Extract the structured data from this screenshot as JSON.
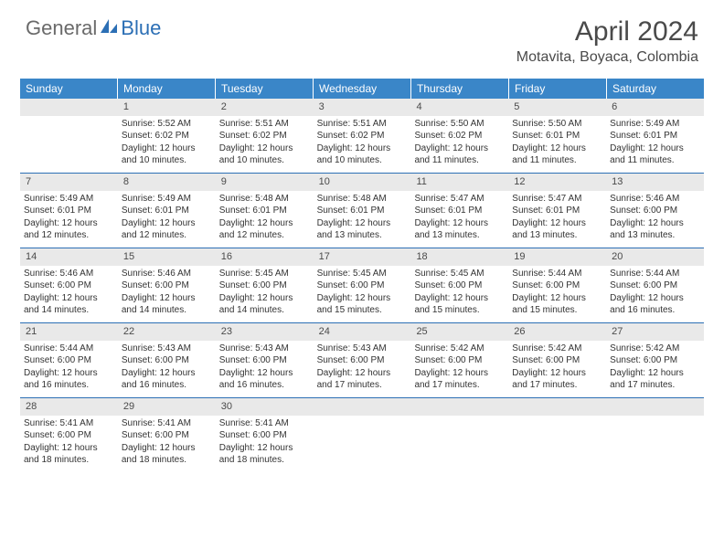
{
  "brand": {
    "general": "General",
    "blue": "Blue"
  },
  "title": "April 2024",
  "location": "Motavita, Boyaca, Colombia",
  "colors": {
    "header_bar": "#3a86c8",
    "header_text": "#ffffff",
    "daynum_bg": "#e9e9e9",
    "week_divider": "#2c6fb5",
    "body_text": "#333333",
    "title_text": "#4a4a4a",
    "logo_gray": "#6a6a6a",
    "logo_blue": "#2c6fb5",
    "page_bg": "#ffffff"
  },
  "typography": {
    "title_fontsize": 30,
    "subtitle_fontsize": 16,
    "dow_fontsize": 12,
    "daynum_fontsize": 11,
    "cell_fontsize": 10
  },
  "days_of_week": [
    "Sunday",
    "Monday",
    "Tuesday",
    "Wednesday",
    "Thursday",
    "Friday",
    "Saturday"
  ],
  "weeks": [
    [
      null,
      {
        "num": "1",
        "sunrise": "Sunrise: 5:52 AM",
        "sunset": "Sunset: 6:02 PM",
        "daylight": "Daylight: 12 hours and 10 minutes."
      },
      {
        "num": "2",
        "sunrise": "Sunrise: 5:51 AM",
        "sunset": "Sunset: 6:02 PM",
        "daylight": "Daylight: 12 hours and 10 minutes."
      },
      {
        "num": "3",
        "sunrise": "Sunrise: 5:51 AM",
        "sunset": "Sunset: 6:02 PM",
        "daylight": "Daylight: 12 hours and 10 minutes."
      },
      {
        "num": "4",
        "sunrise": "Sunrise: 5:50 AM",
        "sunset": "Sunset: 6:02 PM",
        "daylight": "Daylight: 12 hours and 11 minutes."
      },
      {
        "num": "5",
        "sunrise": "Sunrise: 5:50 AM",
        "sunset": "Sunset: 6:01 PM",
        "daylight": "Daylight: 12 hours and 11 minutes."
      },
      {
        "num": "6",
        "sunrise": "Sunrise: 5:49 AM",
        "sunset": "Sunset: 6:01 PM",
        "daylight": "Daylight: 12 hours and 11 minutes."
      }
    ],
    [
      {
        "num": "7",
        "sunrise": "Sunrise: 5:49 AM",
        "sunset": "Sunset: 6:01 PM",
        "daylight": "Daylight: 12 hours and 12 minutes."
      },
      {
        "num": "8",
        "sunrise": "Sunrise: 5:49 AM",
        "sunset": "Sunset: 6:01 PM",
        "daylight": "Daylight: 12 hours and 12 minutes."
      },
      {
        "num": "9",
        "sunrise": "Sunrise: 5:48 AM",
        "sunset": "Sunset: 6:01 PM",
        "daylight": "Daylight: 12 hours and 12 minutes."
      },
      {
        "num": "10",
        "sunrise": "Sunrise: 5:48 AM",
        "sunset": "Sunset: 6:01 PM",
        "daylight": "Daylight: 12 hours and 13 minutes."
      },
      {
        "num": "11",
        "sunrise": "Sunrise: 5:47 AM",
        "sunset": "Sunset: 6:01 PM",
        "daylight": "Daylight: 12 hours and 13 minutes."
      },
      {
        "num": "12",
        "sunrise": "Sunrise: 5:47 AM",
        "sunset": "Sunset: 6:01 PM",
        "daylight": "Daylight: 12 hours and 13 minutes."
      },
      {
        "num": "13",
        "sunrise": "Sunrise: 5:46 AM",
        "sunset": "Sunset: 6:00 PM",
        "daylight": "Daylight: 12 hours and 13 minutes."
      }
    ],
    [
      {
        "num": "14",
        "sunrise": "Sunrise: 5:46 AM",
        "sunset": "Sunset: 6:00 PM",
        "daylight": "Daylight: 12 hours and 14 minutes."
      },
      {
        "num": "15",
        "sunrise": "Sunrise: 5:46 AM",
        "sunset": "Sunset: 6:00 PM",
        "daylight": "Daylight: 12 hours and 14 minutes."
      },
      {
        "num": "16",
        "sunrise": "Sunrise: 5:45 AM",
        "sunset": "Sunset: 6:00 PM",
        "daylight": "Daylight: 12 hours and 14 minutes."
      },
      {
        "num": "17",
        "sunrise": "Sunrise: 5:45 AM",
        "sunset": "Sunset: 6:00 PM",
        "daylight": "Daylight: 12 hours and 15 minutes."
      },
      {
        "num": "18",
        "sunrise": "Sunrise: 5:45 AM",
        "sunset": "Sunset: 6:00 PM",
        "daylight": "Daylight: 12 hours and 15 minutes."
      },
      {
        "num": "19",
        "sunrise": "Sunrise: 5:44 AM",
        "sunset": "Sunset: 6:00 PM",
        "daylight": "Daylight: 12 hours and 15 minutes."
      },
      {
        "num": "20",
        "sunrise": "Sunrise: 5:44 AM",
        "sunset": "Sunset: 6:00 PM",
        "daylight": "Daylight: 12 hours and 16 minutes."
      }
    ],
    [
      {
        "num": "21",
        "sunrise": "Sunrise: 5:44 AM",
        "sunset": "Sunset: 6:00 PM",
        "daylight": "Daylight: 12 hours and 16 minutes."
      },
      {
        "num": "22",
        "sunrise": "Sunrise: 5:43 AM",
        "sunset": "Sunset: 6:00 PM",
        "daylight": "Daylight: 12 hours and 16 minutes."
      },
      {
        "num": "23",
        "sunrise": "Sunrise: 5:43 AM",
        "sunset": "Sunset: 6:00 PM",
        "daylight": "Daylight: 12 hours and 16 minutes."
      },
      {
        "num": "24",
        "sunrise": "Sunrise: 5:43 AM",
        "sunset": "Sunset: 6:00 PM",
        "daylight": "Daylight: 12 hours and 17 minutes."
      },
      {
        "num": "25",
        "sunrise": "Sunrise: 5:42 AM",
        "sunset": "Sunset: 6:00 PM",
        "daylight": "Daylight: 12 hours and 17 minutes."
      },
      {
        "num": "26",
        "sunrise": "Sunrise: 5:42 AM",
        "sunset": "Sunset: 6:00 PM",
        "daylight": "Daylight: 12 hours and 17 minutes."
      },
      {
        "num": "27",
        "sunrise": "Sunrise: 5:42 AM",
        "sunset": "Sunset: 6:00 PM",
        "daylight": "Daylight: 12 hours and 17 minutes."
      }
    ],
    [
      {
        "num": "28",
        "sunrise": "Sunrise: 5:41 AM",
        "sunset": "Sunset: 6:00 PM",
        "daylight": "Daylight: 12 hours and 18 minutes."
      },
      {
        "num": "29",
        "sunrise": "Sunrise: 5:41 AM",
        "sunset": "Sunset: 6:00 PM",
        "daylight": "Daylight: 12 hours and 18 minutes."
      },
      {
        "num": "30",
        "sunrise": "Sunrise: 5:41 AM",
        "sunset": "Sunset: 6:00 PM",
        "daylight": "Daylight: 12 hours and 18 minutes."
      },
      null,
      null,
      null,
      null
    ]
  ]
}
